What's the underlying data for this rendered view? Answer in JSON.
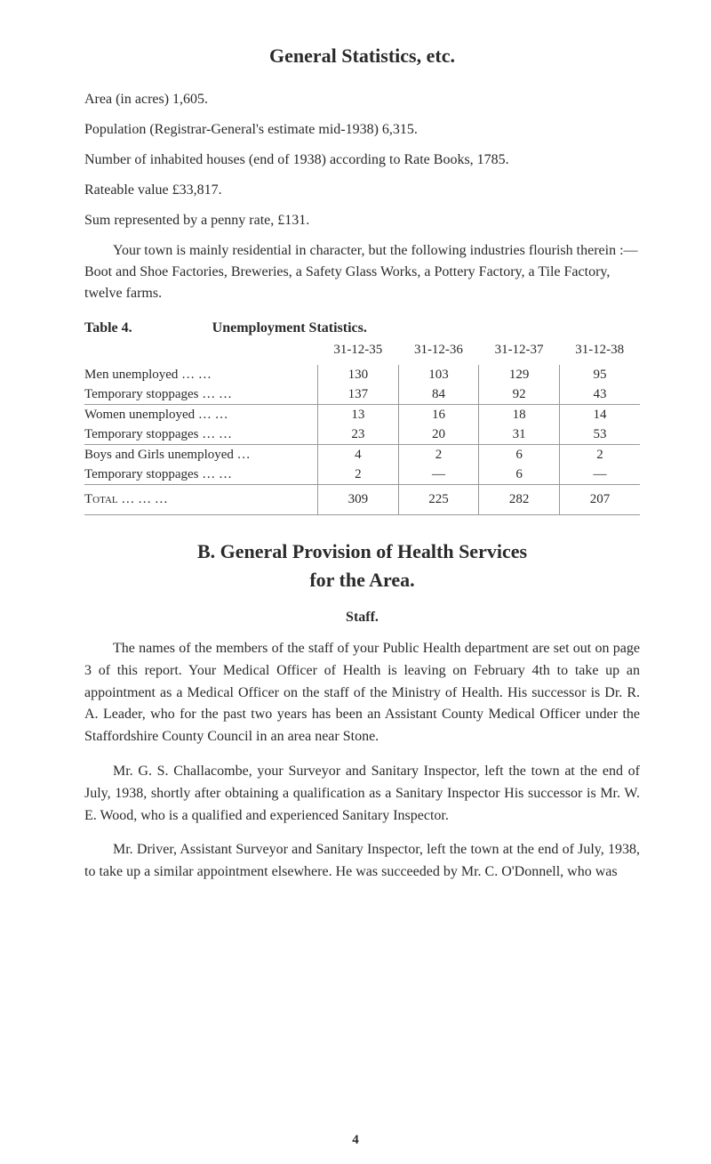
{
  "title": "General Statistics, etc.",
  "paragraphs": {
    "area": "Area (in acres) 1,605.",
    "population": "Population (Registrar-General's estimate mid-1938) 6,315.",
    "houses": "Number of inhabited houses (end of 1938) according to Rate Books, 1785.",
    "rateable": "Rateable value £33,817.",
    "sum": "Sum represented by a penny rate, £131.",
    "intro": "Your town is mainly residential in character, but the following industries flourish therein :—Boot and Shoe Factories, Breweries, a Safety Glass Works, a Pottery Factory, a Tile Factory, twelve farms."
  },
  "table": {
    "label": "Table 4.",
    "caption": "Unemployment Statistics.",
    "columns": [
      "31-12-35",
      "31-12-36",
      "31-12-37",
      "31-12-38"
    ],
    "rows": [
      {
        "label": "Men unemployed      …      …",
        "vals": [
          "130",
          "103",
          "129",
          "95"
        ]
      },
      {
        "label": "Temporary stoppages …      …",
        "vals": [
          "137",
          "84",
          "92",
          "43"
        ]
      },
      {
        "label": "Women unemployed    …      …",
        "vals": [
          "13",
          "16",
          "18",
          "14"
        ]
      },
      {
        "label": "Temporary stoppages    …      …",
        "vals": [
          "23",
          "20",
          "31",
          "53"
        ]
      },
      {
        "label": "Boys and Girls unemployed    …",
        "vals": [
          "4",
          "2",
          "6",
          "2"
        ]
      },
      {
        "label": "Temporary stoppages …      …",
        "vals": [
          "2",
          "—",
          "6",
          "—"
        ]
      }
    ],
    "total": {
      "label": "Total        …        …        …",
      "vals": [
        "309",
        "225",
        "282",
        "207"
      ]
    }
  },
  "section": {
    "letter_title": "B.   General Provision of Health Services",
    "subtitle": "for the Area.",
    "staff_heading": "Staff.",
    "p1": "The names of the members of the staff of your Public Health department are set out on page 3 of this report. Your Medical Officer of Health is leaving on February 4th to take up an appointment as a Medical Officer on the staff of the Ministry of Health. His successor is Dr. R. A. Leader, who for the past two years has been an Assistant County Medical Officer under the Staffordshire County Council in an area near Stone.",
    "p2": "Mr. G. S. Challacombe, your Surveyor and Sanitary Inspector, left the town at the end of July, 1938, shortly after obtaining a qualification as a Sanitary Inspector    His successor is Mr. W. E. Wood, who is a qualified and experienced Sanitary Inspector.",
    "p3": "Mr. Driver, Assistant Surveyor and Sanitary Inspector, left the town at the end of July, 1938, to take up a similar appointment elsewhere.   He was succeeded by Mr. C. O'Donnell, who was"
  },
  "page_number": "4",
  "colors": {
    "text": "#2a2a2a",
    "background": "#ffffff",
    "rule": "#999999"
  },
  "fonts": {
    "body_size": 16,
    "title_size": 22,
    "table_size": 15
  }
}
